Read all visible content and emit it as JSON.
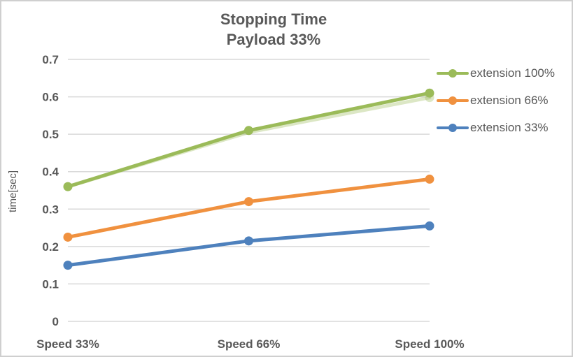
{
  "chart": {
    "title_line1": "Stopping Time",
    "title_line2": "Payload 33%",
    "y_axis_title": "time[sec]"
  },
  "colors": {
    "title_text": "#595959",
    "axis_text": "#595959",
    "gridline": "#D9D9D9",
    "frame_border": "#CFCFCF",
    "background": "#FFFFFF",
    "series_green": "#9BBB59",
    "series_orange": "#F0913F",
    "series_blue": "#4E81BD"
  },
  "chart_data": {
    "type": "line",
    "title": "Stopping Time",
    "subtitle": "Payload 33%",
    "categories": [
      "Speed 33%",
      "Speed 66%",
      "Speed 100%"
    ],
    "series": [
      {
        "name": "extension 100%",
        "color": "#9BBB59",
        "values": [
          0.36,
          0.51,
          0.61
        ]
      },
      {
        "name": "extension 66%",
        "color": "#F0913F",
        "values": [
          0.225,
          0.32,
          0.38
        ]
      },
      {
        "name": "extension 33%",
        "color": "#4E81BD",
        "values": [
          0.15,
          0.215,
          0.255
        ]
      }
    ],
    "shadow_series": {
      "name": "extension 100% ghost",
      "color": "rgba(155,187,89,0.35)",
      "values": [
        0.36,
        0.505,
        0.598
      ]
    },
    "xlabel": "",
    "ylabel": "time[sec]",
    "ylim": [
      0,
      0.7
    ],
    "ytick_labels": [
      "0",
      "0.1",
      "0.2",
      "0.3",
      "0.4",
      "0.5",
      "0.6",
      "0.7"
    ],
    "grid": true,
    "legend_position": "right",
    "marker": "circle"
  }
}
